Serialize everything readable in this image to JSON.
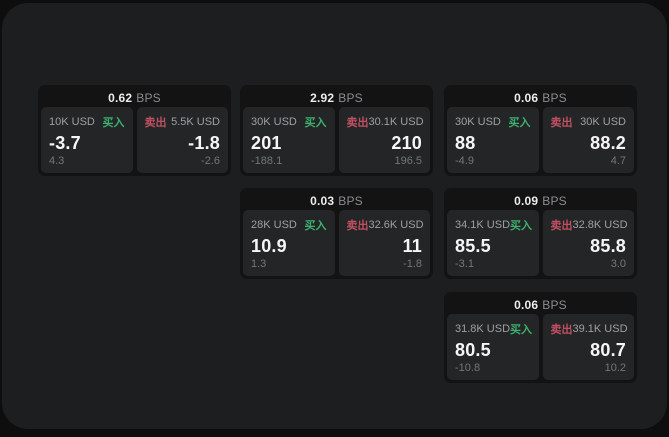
{
  "labels": {
    "bps": "BPS",
    "buy": "买入",
    "sell": "卖出"
  },
  "colors": {
    "background": "#0e0e0f",
    "panel": "#1d1e1f",
    "card": "#131314",
    "tile": "#242527",
    "buy_accent": "#3eb06e",
    "sell_accent": "#bf5062",
    "value_text": "#f6f6f6",
    "muted_text": "#9ea0a3"
  },
  "cards": [
    {
      "bps": "0.62",
      "buy": {
        "amount": "10K USD",
        "value": "-3.7",
        "sub": "4.3"
      },
      "sell": {
        "amount": "5.5K USD",
        "value": "-1.8",
        "sub": "-2.6"
      }
    },
    {
      "bps": "2.92",
      "buy": {
        "amount": "30K USD",
        "value": "201",
        "sub": "-188.1"
      },
      "sell": {
        "amount": "30.1K USD",
        "value": "210",
        "sub": "196.5"
      }
    },
    {
      "bps": "0.06",
      "buy": {
        "amount": "30K USD",
        "value": "88",
        "sub": "-4.9"
      },
      "sell": {
        "amount": "30K USD",
        "value": "88.2",
        "sub": "4.7"
      }
    },
    {
      "bps": "0.03",
      "buy": {
        "amount": "28K USD",
        "value": "10.9",
        "sub": "1.3"
      },
      "sell": {
        "amount": "32.6K USD",
        "value": "11",
        "sub": "-1.8"
      }
    },
    {
      "bps": "0.09",
      "buy": {
        "amount": "34.1K USD",
        "value": "85.5",
        "sub": "-3.1"
      },
      "sell": {
        "amount": "32.8K USD",
        "value": "85.8",
        "sub": "3.0"
      }
    },
    {
      "bps": "0.06",
      "buy": {
        "amount": "31.8K USD",
        "value": "80.5",
        "sub": "-10.8"
      },
      "sell": {
        "amount": "39.1K USD",
        "value": "80.7",
        "sub": "10.2"
      }
    }
  ]
}
